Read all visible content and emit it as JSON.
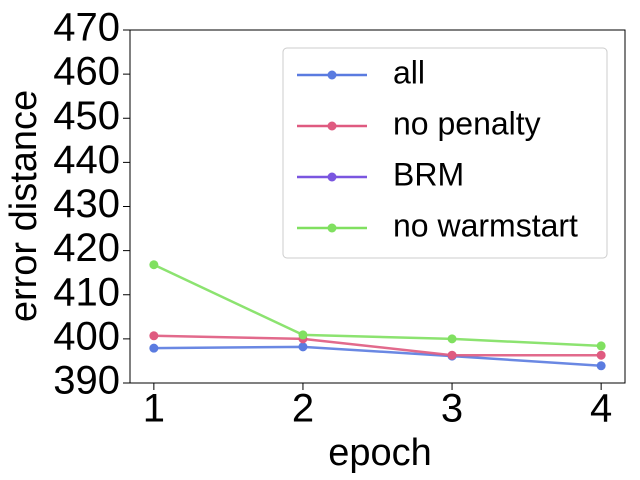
{
  "chart_data": {
    "type": "line",
    "x": [
      1,
      2,
      3,
      4
    ],
    "xlabel": "epoch",
    "ylabel": "error distance",
    "xlim": [
      0.84,
      4.16
    ],
    "xticks": [
      1,
      2,
      3,
      4
    ],
    "ylim": [
      390,
      470
    ],
    "yticks": [
      390,
      400,
      410,
      420,
      430,
      440,
      450,
      460,
      470
    ],
    "legend": "upper right",
    "series": [
      {
        "name": "all",
        "color": "#5a7be0",
        "values": [
          397.9,
          398.2,
          396.1,
          393.9
        ]
      },
      {
        "name": "no penalty",
        "color": "#df5a80",
        "values": [
          400.7,
          400.0,
          396.3,
          396.3
        ]
      },
      {
        "name": "BRM",
        "color": "#7a56e0",
        "values": [
          null,
          null,
          null,
          null
        ]
      },
      {
        "name": "no warmstart",
        "color": "#80e060",
        "values": [
          416.8,
          400.9,
          400.0,
          398.4
        ]
      }
    ]
  }
}
